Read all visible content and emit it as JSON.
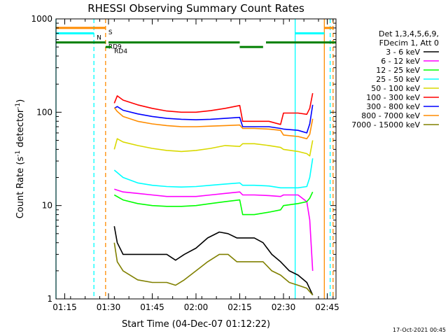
{
  "chart_data": {
    "type": "line",
    "title": "RHESSI Observing Summary Count Rates",
    "xlabel": "Start Time (04-Dec-07 01:12:22)",
    "ylabel": "Count Rate (s⁻¹ detector⁻¹)",
    "ylabel_main": "Count Rate (s",
    "ylabel_sup1": "-1",
    "ylabel_mid": " detector",
    "ylabel_sup2": "-1",
    "ylabel_end": ")",
    "yscale": "log",
    "ylim": [
      1,
      1000
    ],
    "xlim_minutes": [
      72,
      168
    ],
    "xticks": [
      {
        "label": "01:15",
        "min": 75
      },
      {
        "label": "01:30",
        "min": 90
      },
      {
        "label": "01:45",
        "min": 105
      },
      {
        "label": "02:00",
        "min": 120
      },
      {
        "label": "02:15",
        "min": 135
      },
      {
        "label": "02:30",
        "min": 150
      },
      {
        "label": "02:45",
        "min": 165
      }
    ],
    "yticks": [
      {
        "label": "1",
        "value": 1
      },
      {
        "label": "10",
        "value": 10
      },
      {
        "label": "100",
        "value": 100
      },
      {
        "label": "1000",
        "value": 1000
      }
    ],
    "legend_header": [
      "Det 1,3,4,5,6,9,",
      "FDecim 1, Att 0"
    ],
    "series": [
      {
        "name": "3 - 6 keV",
        "color": "#000000",
        "x": [
          92,
          93,
          95,
          100,
          105,
          110,
          113,
          116,
          120,
          124,
          128,
          131,
          134,
          137,
          140,
          143,
          146,
          149,
          152,
          155,
          158,
          160
        ],
        "y": [
          6,
          4,
          3,
          3,
          3,
          3,
          2.6,
          3,
          3.5,
          4.5,
          5.2,
          5,
          4.5,
          4.5,
          4.5,
          4,
          3,
          2.5,
          2,
          1.8,
          1.5,
          1.1
        ]
      },
      {
        "name": "6 - 12 keV",
        "color": "#ff00ff",
        "x": [
          92,
          95,
          100,
          105,
          110,
          115,
          120,
          125,
          130,
          135,
          136,
          140,
          145,
          149,
          150,
          155,
          158,
          159,
          160
        ],
        "y": [
          15,
          14,
          13.5,
          13,
          12.5,
          12.5,
          12.5,
          13,
          13.5,
          14,
          13,
          13,
          12.8,
          12.5,
          13,
          13,
          11,
          7,
          2
        ]
      },
      {
        "name": "12 - 25 keV",
        "color": "#00ff00",
        "x": [
          92,
          95,
          100,
          105,
          110,
          115,
          120,
          125,
          130,
          135,
          136,
          140,
          145,
          149,
          150,
          155,
          158,
          159,
          160
        ],
        "y": [
          13,
          11.5,
          10.5,
          10,
          9.8,
          9.8,
          10,
          10.5,
          11,
          11.5,
          8,
          8,
          8.5,
          9,
          10,
          10.5,
          11,
          12,
          14
        ]
      },
      {
        "name": "25 - 50 keV",
        "color": "#00ffff",
        "x": [
          92,
          95,
          100,
          105,
          110,
          115,
          120,
          125,
          130,
          135,
          136,
          140,
          145,
          149,
          150,
          155,
          158,
          159,
          160
        ],
        "y": [
          24,
          20,
          17.5,
          16.5,
          16,
          15.8,
          16,
          16.5,
          17,
          17.5,
          16.5,
          16.5,
          16.2,
          15.5,
          15.5,
          15.5,
          16,
          20,
          32
        ]
      },
      {
        "name": "50 - 100 keV",
        "color": "#d9d900",
        "x": [
          92,
          93,
          95,
          100,
          105,
          110,
          115,
          120,
          125,
          130,
          135,
          136,
          140,
          145,
          149,
          150,
          155,
          158,
          159,
          160
        ],
        "y": [
          40,
          52,
          48,
          44,
          41,
          39,
          38,
          39,
          41,
          44,
          43,
          46,
          46,
          44,
          42,
          40,
          38,
          36,
          34,
          50
        ]
      },
      {
        "name": "100 - 300 keV",
        "color": "#ff0000",
        "x": [
          92,
          93,
          95,
          100,
          105,
          110,
          115,
          120,
          125,
          130,
          135,
          136,
          140,
          145,
          149,
          150,
          155,
          158,
          159,
          160
        ],
        "y": [
          125,
          150,
          135,
          120,
          110,
          103,
          100,
          100,
          104,
          110,
          118,
          80,
          80,
          80,
          74,
          98,
          98,
          95,
          110,
          160
        ]
      },
      {
        "name": "300 - 800 keV",
        "color": "#0000ff",
        "x": [
          92,
          93,
          95,
          100,
          105,
          110,
          115,
          120,
          125,
          130,
          135,
          136,
          140,
          145,
          149,
          150,
          155,
          158,
          159,
          160
        ],
        "y": [
          110,
          115,
          105,
          96,
          90,
          86,
          84,
          83,
          84,
          86,
          88,
          70,
          70,
          70,
          67,
          66,
          64,
          60,
          75,
          120
        ]
      },
      {
        "name": "800 - 7000 keV",
        "color": "#ff8c00",
        "x": [
          92,
          93,
          95,
          100,
          105,
          110,
          115,
          120,
          125,
          130,
          135,
          136,
          140,
          145,
          149,
          150,
          155,
          158,
          159,
          160
        ],
        "y": [
          112,
          102,
          90,
          80,
          75,
          72,
          70,
          70,
          71,
          72,
          73,
          67,
          67,
          66,
          64,
          57,
          55,
          52,
          58,
          85
        ]
      },
      {
        "name": "7000 - 15000 keV",
        "color": "#808000",
        "x": [
          92,
          93,
          95,
          100,
          105,
          110,
          113,
          116,
          120,
          124,
          128,
          131,
          134,
          137,
          140,
          143,
          146,
          149,
          152,
          155,
          158,
          160
        ],
        "y": [
          4,
          2.5,
          2,
          1.6,
          1.5,
          1.5,
          1.4,
          1.6,
          2,
          2.5,
          3,
          3,
          2.5,
          2.5,
          2.5,
          2.5,
          2,
          1.8,
          1.5,
          1.4,
          1.3,
          1.1
        ]
      }
    ],
    "flag_bars": [
      {
        "label": "S",
        "color": "#ff8c00",
        "value": 800,
        "segments": [
          [
            72,
            89
          ],
          [
            164,
            167
          ]
        ]
      },
      {
        "label": "N",
        "color": "#00ffff",
        "value": 700,
        "segments": [
          [
            72,
            85
          ],
          [
            154,
            164
          ]
        ]
      },
      {
        "label": "RD9",
        "color": "#008000",
        "value": 560,
        "segments": [
          [
            72,
            89
          ],
          [
            90,
            135
          ],
          [
            144,
            168
          ]
        ]
      },
      {
        "label": "RD4",
        "color": "#008000",
        "value": 500,
        "segments": [
          [
            89,
            91
          ],
          [
            135,
            143
          ]
        ]
      }
    ],
    "vertical_markers": [
      {
        "min": 72,
        "color": "#00ffff",
        "style": "solid"
      },
      {
        "min": 85,
        "color": "#00ffff",
        "style": "dashed"
      },
      {
        "min": 89,
        "color": "#ff8c00",
        "style": "dashed"
      },
      {
        "min": 154,
        "color": "#00ffff",
        "style": "solid"
      },
      {
        "min": 164,
        "color": "#ff8c00",
        "style": "solid"
      },
      {
        "min": 166,
        "color": "#00ffff",
        "style": "dashed"
      },
      {
        "min": 167,
        "color": "#ff8c00",
        "style": "dashed"
      }
    ],
    "grid": false,
    "legend_position": "right",
    "footer_date": "17-Oct-2021 00:45"
  }
}
